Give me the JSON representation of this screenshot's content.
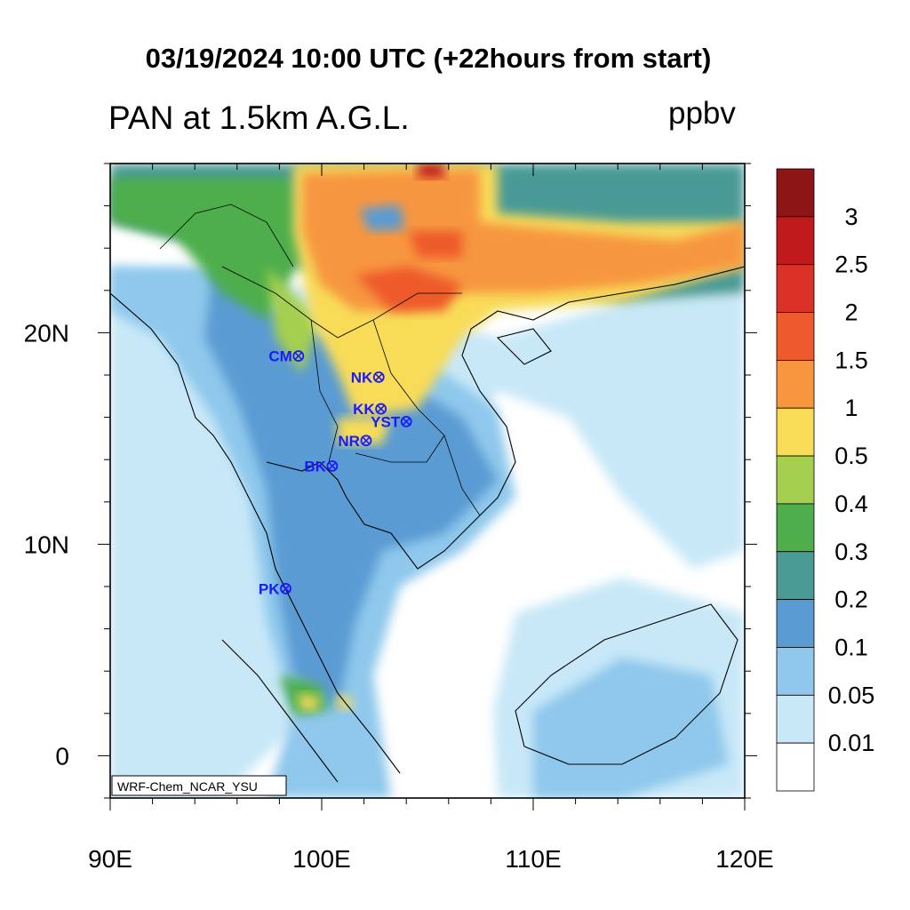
{
  "title": "03/19/2024 10:00 UTC (+22hours from start)",
  "variable_title": "PAN at 1.5km A.G.L.",
  "units": "ppbv",
  "credit": "WRF-Chem_NCAR_YSU",
  "map": {
    "lon_range": [
      90,
      120
    ],
    "lat_range": [
      -2,
      28
    ],
    "x_ticks": [
      {
        "value": 90,
        "label": "90E"
      },
      {
        "value": 100,
        "label": "100E"
      },
      {
        "value": 110,
        "label": "110E"
      },
      {
        "value": 120,
        "label": "120E"
      }
    ],
    "y_ticks": [
      {
        "value": 20,
        "label": "20N"
      },
      {
        "value": 10,
        "label": "10N"
      },
      {
        "value": 0,
        "label": "0"
      }
    ],
    "stations": [
      {
        "label": "CM",
        "lon": 98.9,
        "lat": 18.9
      },
      {
        "label": "NK",
        "lon": 102.7,
        "lat": 17.9
      },
      {
        "label": "KK",
        "lon": 102.8,
        "lat": 16.4
      },
      {
        "label": "YST",
        "lon": 104.0,
        "lat": 15.8
      },
      {
        "label": "NR",
        "lon": 102.1,
        "lat": 14.9
      },
      {
        "label": "BK",
        "lon": 100.5,
        "lat": 13.7
      },
      {
        "label": "PK",
        "lon": 98.3,
        "lat": 7.9
      }
    ],
    "station_color": "#1a1aff"
  },
  "colorbar": {
    "labels": [
      "3",
      "2.5",
      "2",
      "1.5",
      "1",
      "0.5",
      "0.4",
      "0.3",
      "0.2",
      "0.1",
      "0.05",
      "0.01"
    ],
    "colors": [
      "#8e1516",
      "#c01a1c",
      "#dc3127",
      "#ee5a2c",
      "#f7963f",
      "#f8dc58",
      "#a5cf4f",
      "#4dae4b",
      "#4a9a96",
      "#5a9bd3",
      "#8fc8ec",
      "#c8e8f8",
      "#ffffff"
    ]
  }
}
